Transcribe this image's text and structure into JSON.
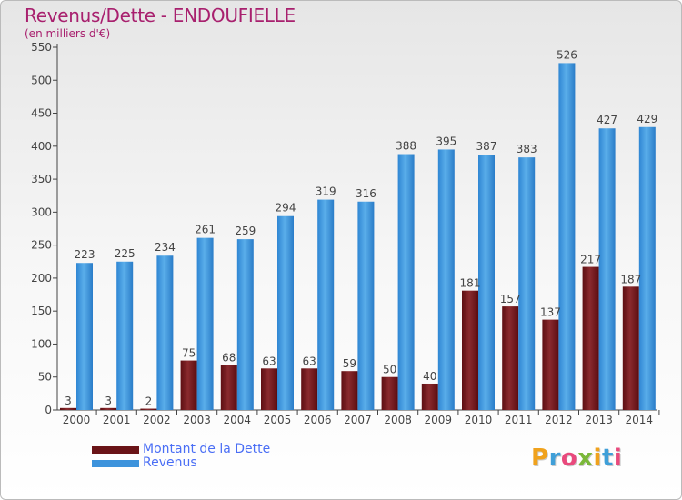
{
  "title": "Revenus/Dette - ENDOUFIELLE",
  "subtitle": "(en milliers d'€)",
  "legend": {
    "debt_label": "Montant de la Dette",
    "revenue_label": "Revenus"
  },
  "logo": {
    "text": "Proxiti",
    "letter_colors": [
      "#f0a21d",
      "#3f9fd8",
      "#e94a7d",
      "#7bb839",
      "#f0a21d",
      "#3f9fd8",
      "#e94a7d"
    ]
  },
  "colors": {
    "debt": "#7a1a1e",
    "revenue": "#3d93dc",
    "title": "#a8206e",
    "legend_text": "#4a6ef5"
  },
  "chart_data": {
    "type": "bar",
    "categories": [
      "2000",
      "2001",
      "2002",
      "2003",
      "2004",
      "2005",
      "2006",
      "2007",
      "2008",
      "2009",
      "2010",
      "2011",
      "2012",
      "2013",
      "2014"
    ],
    "series": [
      {
        "name": "Montant de la Dette",
        "values": [
          3,
          3,
          2,
          75,
          68,
          63,
          63,
          59,
          50,
          40,
          181,
          157,
          137,
          217,
          187
        ]
      },
      {
        "name": "Revenus",
        "values": [
          223,
          225,
          234,
          261,
          259,
          294,
          319,
          316,
          388,
          395,
          387,
          383,
          526,
          427,
          429
        ]
      }
    ],
    "title": "Revenus/Dette - ENDOUFIELLE",
    "ylim": [
      0,
      550
    ],
    "yticks": [
      0,
      50,
      100,
      150,
      200,
      250,
      300,
      350,
      400,
      450,
      500,
      550
    ],
    "grid": false,
    "legend_position": "bottom-left"
  }
}
